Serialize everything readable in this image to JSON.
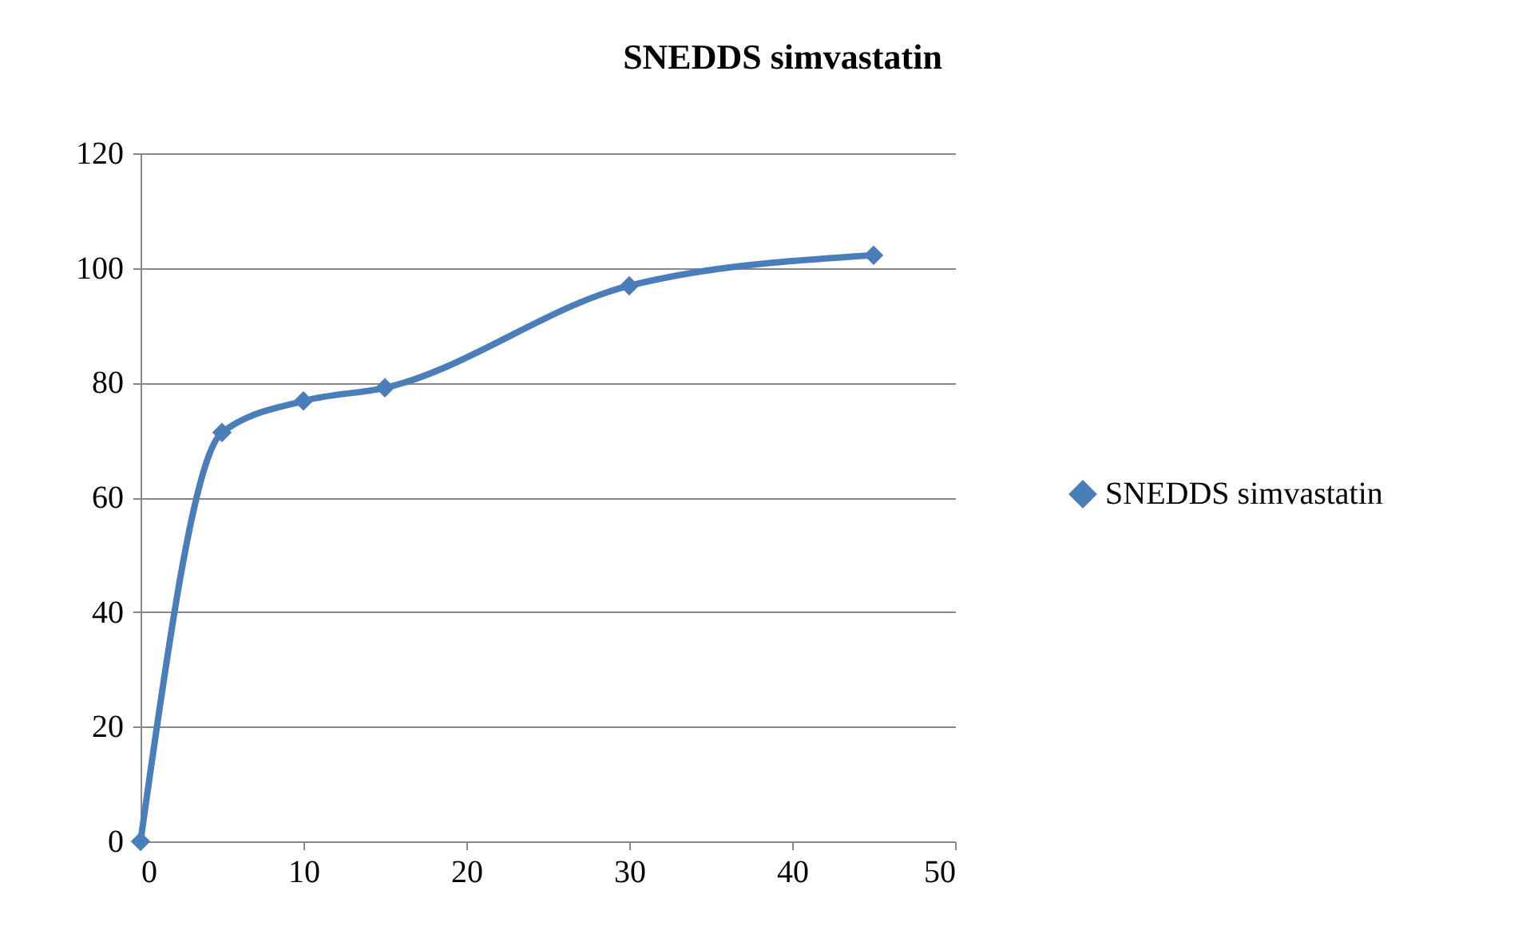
{
  "chart_data": {
    "type": "line",
    "title": "SNEDDS simvastatin",
    "x": [
      0,
      5,
      10,
      15,
      30,
      45
    ],
    "series": [
      {
        "name": "SNEDDS simvastatin",
        "color": "#4a7ebb",
        "values": [
          0,
          71.3,
          76.8,
          79.1,
          96.9,
          102.2
        ]
      }
    ],
    "xlim": [
      0,
      50
    ],
    "xticks": [
      0,
      10,
      20,
      30,
      40,
      50
    ],
    "ylim": [
      0,
      120
    ],
    "yticks": [
      0,
      20,
      40,
      60,
      80,
      100,
      120
    ],
    "grid": "y",
    "legend": "right",
    "marker": "diamond",
    "line_style": "solid"
  }
}
